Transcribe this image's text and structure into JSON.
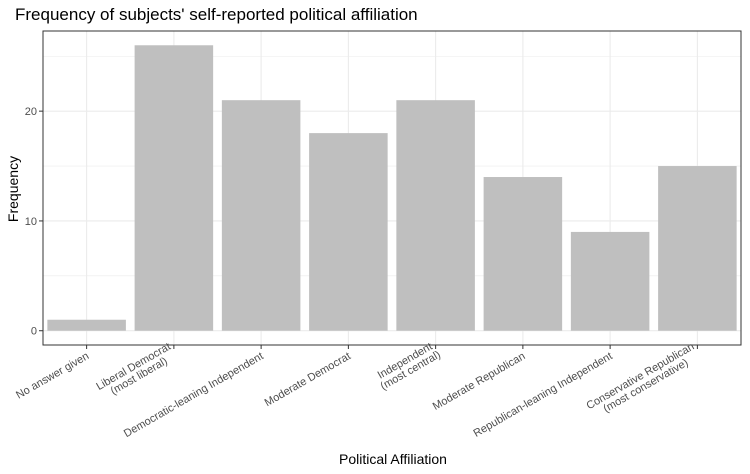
{
  "chart_data": {
    "type": "bar",
    "title": "Frequency of subjects' self-reported political affiliation",
    "xlabel": "Political Affiliation",
    "ylabel": "Frequency",
    "categories": [
      "No answer given",
      "Liberal Democrat\n(most liberal)",
      "Democratic-leaning Independent",
      "Moderate Democrat",
      "Independent\n(most central)",
      "Moderate Republican",
      "Republican-leaning Independent",
      "Conservative Republican\n(most conservative)"
    ],
    "values": [
      1,
      26,
      21,
      18,
      21,
      14,
      9,
      15
    ],
    "y_ticks": [
      0,
      10,
      20
    ],
    "ylim": [
      -1.3,
      27.3
    ],
    "grid": true,
    "bar_color": "#bfbfbf",
    "grid_color": "#ebebeb"
  }
}
